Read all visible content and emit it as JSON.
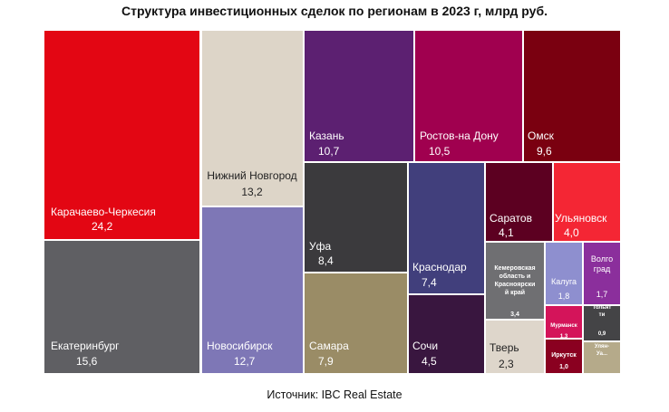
{
  "chart_data": {
    "type": "treemap",
    "title": "Структура инвестиционных сделок по регионам в 2023 г, млрд руб.",
    "source": "Источник: IBC Real Estate",
    "nodes": [
      {
        "name": "Карачаево-Черкесия",
        "value": "24,2",
        "color": "#e30613",
        "text": "#ffffff"
      },
      {
        "name": "Екатеринбург",
        "value": "15,6",
        "color": "#5f5f63",
        "text": "#ffffff"
      },
      {
        "name": "Нижний Новгород",
        "value": "13,2",
        "color": "#ddd5c8",
        "text": "#222222"
      },
      {
        "name": "Новосибирск",
        "value": "12,7",
        "color": "#7e77b6",
        "text": "#ffffff"
      },
      {
        "name": "Казань",
        "value": "10,7",
        "color": "#5c2071",
        "text": "#ffffff"
      },
      {
        "name": "Ростов-на Дону",
        "value": "10,5",
        "color": "#a0004f",
        "text": "#ffffff"
      },
      {
        "name": "Омск",
        "value": "9,6",
        "color": "#7a0010",
        "text": "#ffffff"
      },
      {
        "name": "Уфа",
        "value": "8,4",
        "color": "#3b3a3d",
        "text": "#ffffff"
      },
      {
        "name": "Самара",
        "value": "7,9",
        "color": "#9a8c66",
        "text": "#ffffff"
      },
      {
        "name": "Краснодар",
        "value": "7,4",
        "color": "#413f7c",
        "text": "#ffffff"
      },
      {
        "name": "Сочи",
        "value": "4,5",
        "color": "#39163f",
        "text": "#ffffff"
      },
      {
        "name": "Саратов",
        "value": "4,1",
        "color": "#5c0021",
        "text": "#ffffff"
      },
      {
        "name": "Ульяновск",
        "value": "4,0",
        "color": "#f42634",
        "text": "#ffffff"
      },
      {
        "name": "Кемеровская область и Красноярский край",
        "value": "3,4",
        "color": "#6f6f72",
        "text": "#ffffff"
      },
      {
        "name": "Тверь",
        "value": "2,3",
        "color": "#ded6cb",
        "text": "#222222"
      },
      {
        "name": "Калуга",
        "value": "1,8",
        "color": "#8e8fcf",
        "text": "#ffffff"
      },
      {
        "name": "Волгоград",
        "value": "1,7",
        "color": "#8b2f9c",
        "text": "#ffffff"
      },
      {
        "name": "Мурманск",
        "value": "1,3",
        "color": "#d4145a",
        "text": "#ffffff"
      },
      {
        "name": "Тольятти",
        "value": "0,9",
        "color": "#444446",
        "text": "#ffffff"
      },
      {
        "name": "Иркутск",
        "value": "1,0",
        "color": "#8a0020",
        "text": "#ffffff"
      },
      {
        "name": "Ульяновск-Уа...",
        "value": "",
        "color": "#b5aa8a",
        "text": "#ffffff"
      }
    ]
  }
}
